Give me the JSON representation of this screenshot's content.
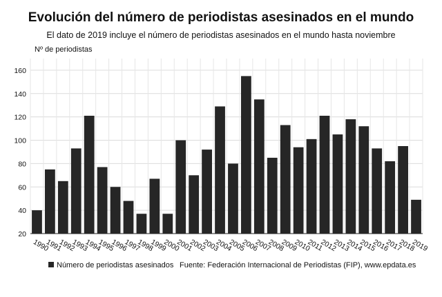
{
  "title": "Evolución del número de periodistas asesinados en el mundo",
  "subtitle": "El dato de 2019 incluye el número de periodistas asesinados en el mundo hasta noviembre",
  "source": "Fuente: Federación Internacional de Periodistas (FIP), www.epdata.es",
  "colors": {
    "bar": "#262626",
    "grid": "#dcdcdc"
  },
  "chart_data": {
    "type": "bar",
    "title": "Evolución del número de periodistas asesinados en el mundo",
    "subtitle": "El dato de 2019 incluye el número de periodistas asesinados en el mundo hasta noviembre",
    "ylabel": "Nº de periodistas",
    "xlabel": "",
    "ylim": [
      20,
      170
    ],
    "yticks": [
      20,
      40,
      60,
      80,
      100,
      120,
      140,
      160
    ],
    "grid": true,
    "legend_position": "bottom-left",
    "categories": [
      "1990",
      "1991",
      "1992",
      "1993",
      "1994",
      "1995",
      "1996",
      "1997",
      "1998",
      "1999",
      "2000",
      "2001",
      "2002",
      "2003",
      "2004",
      "2005",
      "2006",
      "2007",
      "2008",
      "2009",
      "2010",
      "2011",
      "2012",
      "2013",
      "2014",
      "2015",
      "2016",
      "2017",
      "2018",
      "2019"
    ],
    "series": [
      {
        "name": "Número de periodistas asesinados",
        "values": [
          40,
          75,
          65,
          93,
          121,
          77,
          60,
          48,
          37,
          67,
          37,
          100,
          70,
          92,
          129,
          80,
          155,
          135,
          85,
          113,
          94,
          101,
          121,
          105,
          118,
          112,
          93,
          82,
          95,
          49
        ]
      }
    ]
  }
}
